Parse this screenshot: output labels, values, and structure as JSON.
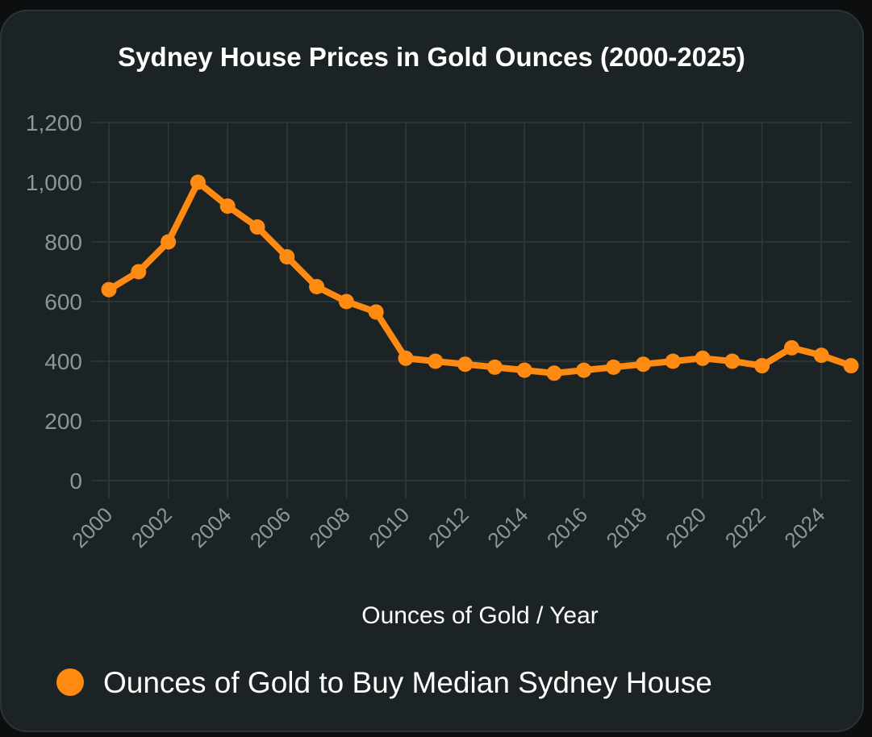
{
  "chart_data": {
    "type": "line",
    "title": "Sydney House Prices in Gold Ounces (2000-2025)",
    "xlabel": "Ounces of Gold / Year",
    "ylabel": "",
    "xlim": [
      2000,
      2025
    ],
    "ylim": [
      0,
      1200
    ],
    "y_ticks": [
      0,
      200,
      400,
      600,
      800,
      1000,
      1200
    ],
    "y_tick_labels": [
      "0",
      "200",
      "400",
      "600",
      "800",
      "1,000",
      "1,200"
    ],
    "x_ticks": [
      "2000",
      "2002",
      "2004",
      "2006",
      "2008",
      "2010",
      "2012",
      "2014",
      "2016",
      "2018",
      "2020",
      "2022",
      "2024"
    ],
    "grid": true,
    "legend_position": "bottom",
    "series": [
      {
        "name": "Ounces of Gold to Buy Median Sydney House",
        "color": "#ff8a12",
        "x": [
          2000,
          2001,
          2002,
          2003,
          2004,
          2005,
          2006,
          2007,
          2008,
          2009,
          2010,
          2011,
          2012,
          2013,
          2014,
          2015,
          2016,
          2017,
          2018,
          2019,
          2020,
          2021,
          2022,
          2023,
          2024,
          2025
        ],
        "y": [
          640,
          700,
          800,
          1000,
          920,
          850,
          750,
          650,
          600,
          565,
          410,
          400,
          390,
          380,
          370,
          360,
          370,
          380,
          390,
          400,
          410,
          400,
          385,
          445,
          420,
          385
        ]
      }
    ]
  }
}
